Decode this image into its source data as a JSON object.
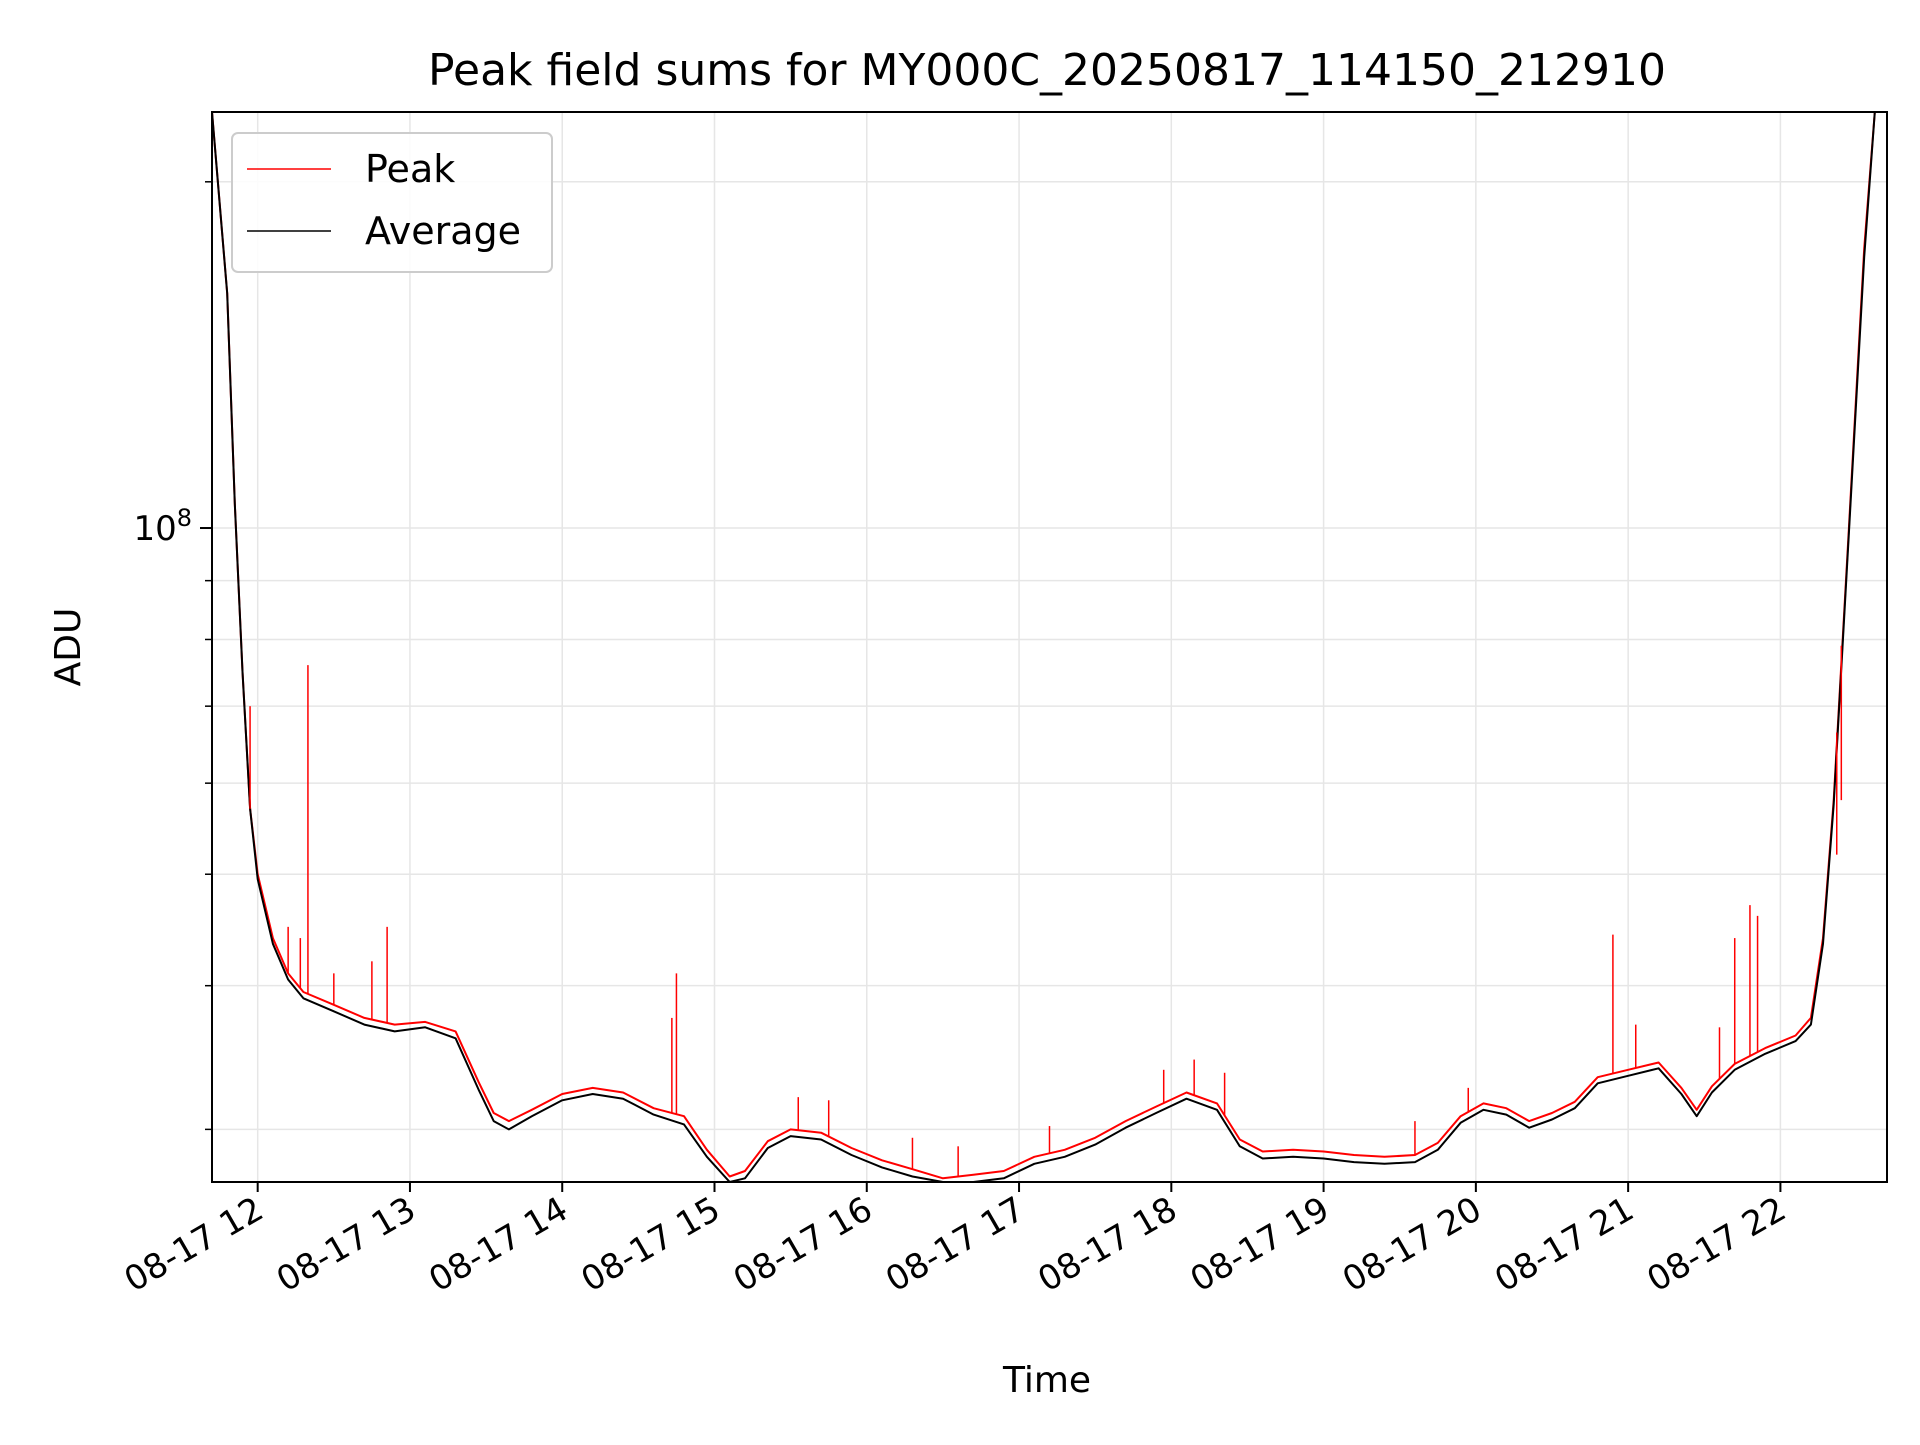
{
  "chart_data": {
    "type": "line",
    "title": "Peak field sums for MY000C_20250817_114150_212910",
    "xlabel": "Time",
    "ylabel": "ADU",
    "x_tick_labels": [
      "08-17 12",
      "08-17 13",
      "08-17 14",
      "08-17 15",
      "08-17 16",
      "08-17 17",
      "08-17 18",
      "08-17 19",
      "08-17 20",
      "08-17 21",
      "08-17 22"
    ],
    "x_tick_hours": [
      12,
      13,
      14,
      15,
      16,
      17,
      18,
      19,
      20,
      21,
      22
    ],
    "x_range_hours": [
      11.7,
      22.7
    ],
    "y_scale": "log",
    "ylim": [
      27000000,
      230000000
    ],
    "y_major_tick": {
      "value": 100000000,
      "base": "10",
      "exponent": "8"
    },
    "y_minor_ticks": [
      30000000,
      40000000,
      50000000,
      60000000,
      70000000,
      80000000,
      90000000,
      200000000
    ],
    "grid": true,
    "legend_position": "upper-left",
    "colors": {
      "peak": "#ff0000",
      "average": "#000000"
    },
    "series": [
      {
        "name": "Peak",
        "color": "#ff0000",
        "points": [
          [
            11.7,
            230000000
          ],
          [
            11.8,
            160000000
          ],
          [
            11.85,
            105000000
          ],
          [
            11.9,
            75000000
          ],
          [
            11.95,
            57000000
          ],
          [
            12.0,
            50000000
          ],
          [
            12.1,
            44000000
          ],
          [
            12.2,
            41000000
          ],
          [
            12.3,
            39500000
          ],
          [
            12.5,
            38500000
          ],
          [
            12.7,
            37500000
          ],
          [
            12.9,
            37000000
          ],
          [
            13.1,
            37200000
          ],
          [
            13.3,
            36500000
          ],
          [
            13.45,
            33000000
          ],
          [
            13.55,
            31000000
          ],
          [
            13.65,
            30500000
          ],
          [
            13.8,
            31200000
          ],
          [
            14.0,
            32200000
          ],
          [
            14.2,
            32600000
          ],
          [
            14.4,
            32300000
          ],
          [
            14.6,
            31300000
          ],
          [
            14.8,
            30800000
          ],
          [
            14.95,
            28800000
          ],
          [
            15.1,
            27300000
          ],
          [
            15.2,
            27600000
          ],
          [
            15.35,
            29300000
          ],
          [
            15.5,
            30000000
          ],
          [
            15.7,
            29800000
          ],
          [
            15.9,
            28900000
          ],
          [
            16.1,
            28200000
          ],
          [
            16.3,
            27700000
          ],
          [
            16.5,
            27200000
          ],
          [
            16.7,
            27400000
          ],
          [
            16.9,
            27600000
          ],
          [
            17.1,
            28400000
          ],
          [
            17.3,
            28800000
          ],
          [
            17.5,
            29500000
          ],
          [
            17.7,
            30500000
          ],
          [
            17.9,
            31400000
          ],
          [
            18.1,
            32300000
          ],
          [
            18.3,
            31600000
          ],
          [
            18.45,
            29400000
          ],
          [
            18.6,
            28700000
          ],
          [
            18.8,
            28800000
          ],
          [
            19.0,
            28700000
          ],
          [
            19.2,
            28500000
          ],
          [
            19.4,
            28400000
          ],
          [
            19.6,
            28500000
          ],
          [
            19.75,
            29200000
          ],
          [
            19.9,
            30800000
          ],
          [
            20.05,
            31600000
          ],
          [
            20.2,
            31300000
          ],
          [
            20.35,
            30500000
          ],
          [
            20.5,
            31000000
          ],
          [
            20.65,
            31700000
          ],
          [
            20.8,
            33300000
          ],
          [
            21.0,
            33800000
          ],
          [
            21.2,
            34300000
          ],
          [
            21.35,
            32600000
          ],
          [
            21.45,
            31200000
          ],
          [
            21.55,
            32700000
          ],
          [
            21.7,
            34200000
          ],
          [
            21.9,
            35300000
          ],
          [
            22.1,
            36200000
          ],
          [
            22.2,
            37500000
          ],
          [
            22.28,
            44000000
          ],
          [
            22.35,
            58000000
          ],
          [
            22.45,
            100000000
          ],
          [
            22.55,
            175000000
          ],
          [
            22.62,
            230000000
          ]
        ],
        "spikes": [
          [
            11.95,
            70000000
          ],
          [
            12.33,
            76000000
          ],
          [
            12.2,
            45000000
          ],
          [
            12.28,
            44000000
          ],
          [
            12.5,
            41000000
          ],
          [
            12.75,
            42000000
          ],
          [
            12.85,
            45000000
          ],
          [
            14.75,
            41000000
          ],
          [
            14.72,
            37500000
          ],
          [
            15.55,
            32000000
          ],
          [
            15.75,
            31800000
          ],
          [
            16.3,
            29500000
          ],
          [
            16.6,
            29000000
          ],
          [
            17.2,
            30200000
          ],
          [
            17.95,
            33800000
          ],
          [
            18.15,
            34500000
          ],
          [
            18.35,
            33600000
          ],
          [
            19.6,
            30500000
          ],
          [
            19.95,
            32600000
          ],
          [
            20.9,
            44300000
          ],
          [
            21.05,
            37000000
          ],
          [
            21.6,
            36800000
          ],
          [
            21.7,
            44000000
          ],
          [
            21.8,
            47000000
          ],
          [
            21.85,
            46000000
          ],
          [
            22.37,
            52000000
          ],
          [
            22.4,
            58000000
          ]
        ]
      },
      {
        "name": "Average",
        "color": "#000000",
        "points": [
          [
            11.7,
            230000000
          ],
          [
            11.8,
            160000000
          ],
          [
            11.85,
            105000000
          ],
          [
            11.9,
            75000000
          ],
          [
            11.95,
            57000000
          ],
          [
            12.0,
            49500000
          ],
          [
            12.1,
            43500000
          ],
          [
            12.2,
            40500000
          ],
          [
            12.3,
            39000000
          ],
          [
            12.5,
            38000000
          ],
          [
            12.7,
            37000000
          ],
          [
            12.9,
            36500000
          ],
          [
            13.1,
            36800000
          ],
          [
            13.3,
            36000000
          ],
          [
            13.45,
            32500000
          ],
          [
            13.55,
            30500000
          ],
          [
            13.65,
            30000000
          ],
          [
            13.8,
            30800000
          ],
          [
            14.0,
            31800000
          ],
          [
            14.2,
            32200000
          ],
          [
            14.4,
            31900000
          ],
          [
            14.6,
            30900000
          ],
          [
            14.8,
            30300000
          ],
          [
            14.95,
            28400000
          ],
          [
            15.1,
            26900000
          ],
          [
            15.2,
            27200000
          ],
          [
            15.35,
            28900000
          ],
          [
            15.5,
            29600000
          ],
          [
            15.7,
            29400000
          ],
          [
            15.9,
            28500000
          ],
          [
            16.1,
            27800000
          ],
          [
            16.3,
            27300000
          ],
          [
            16.5,
            26800000
          ],
          [
            16.7,
            27000000
          ],
          [
            16.9,
            27200000
          ],
          [
            17.1,
            28000000
          ],
          [
            17.3,
            28400000
          ],
          [
            17.5,
            29100000
          ],
          [
            17.7,
            30100000
          ],
          [
            17.9,
            31000000
          ],
          [
            18.1,
            31900000
          ],
          [
            18.3,
            31200000
          ],
          [
            18.45,
            29000000
          ],
          [
            18.6,
            28300000
          ],
          [
            18.8,
            28400000
          ],
          [
            19.0,
            28300000
          ],
          [
            19.2,
            28100000
          ],
          [
            19.4,
            28000000
          ],
          [
            19.6,
            28100000
          ],
          [
            19.75,
            28800000
          ],
          [
            19.9,
            30400000
          ],
          [
            20.05,
            31200000
          ],
          [
            20.2,
            30900000
          ],
          [
            20.35,
            30100000
          ],
          [
            20.5,
            30600000
          ],
          [
            20.65,
            31300000
          ],
          [
            20.8,
            32900000
          ],
          [
            21.0,
            33400000
          ],
          [
            21.2,
            33900000
          ],
          [
            21.35,
            32200000
          ],
          [
            21.45,
            30800000
          ],
          [
            21.55,
            32300000
          ],
          [
            21.7,
            33800000
          ],
          [
            21.9,
            34900000
          ],
          [
            22.1,
            35800000
          ],
          [
            22.2,
            37000000
          ],
          [
            22.28,
            43500000
          ],
          [
            22.35,
            57500000
          ],
          [
            22.45,
            99000000
          ],
          [
            22.55,
            172000000
          ],
          [
            22.62,
            230000000
          ]
        ]
      }
    ]
  }
}
